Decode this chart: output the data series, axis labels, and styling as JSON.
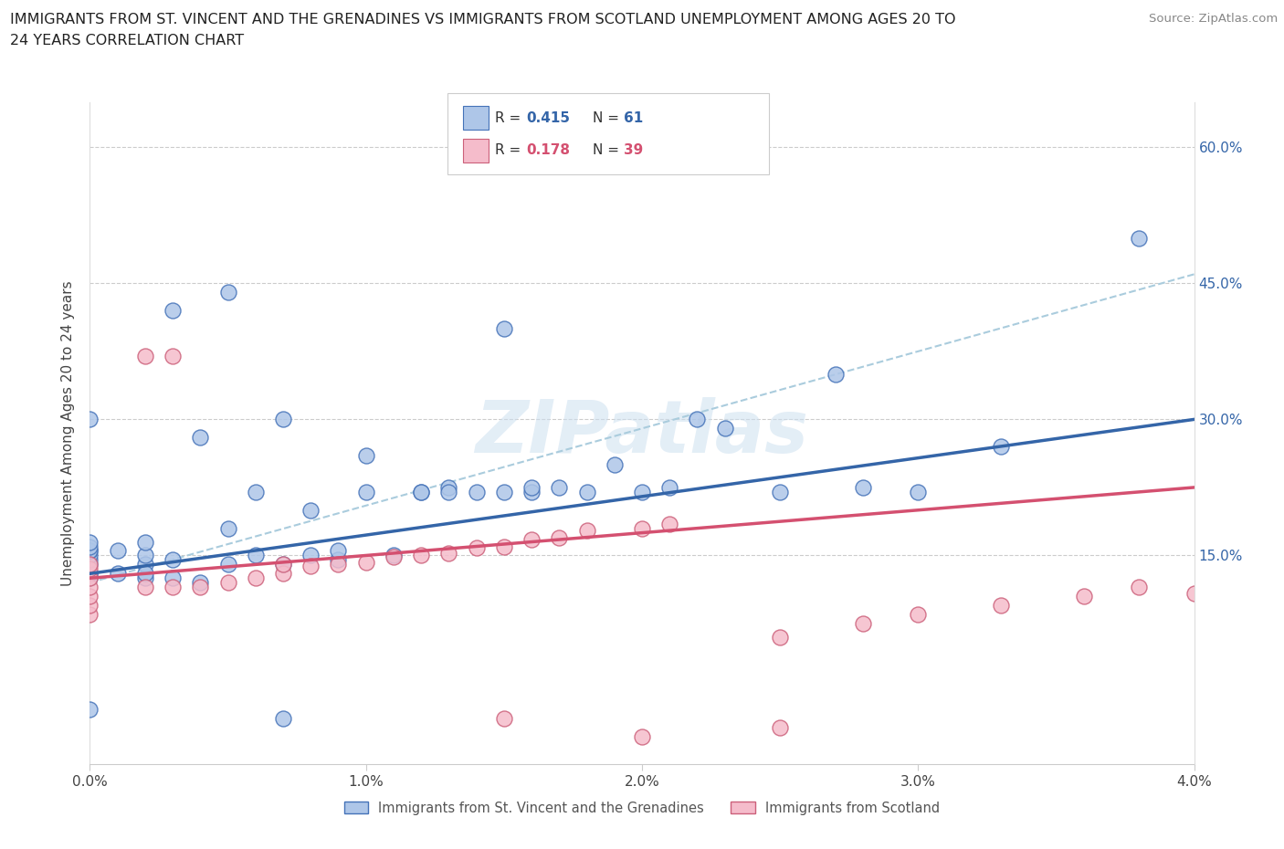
{
  "title_line1": "IMMIGRANTS FROM ST. VINCENT AND THE GRENADINES VS IMMIGRANTS FROM SCOTLAND UNEMPLOYMENT AMONG AGES 20 TO",
  "title_line2": "24 YEARS CORRELATION CHART",
  "source_text": "Source: ZipAtlas.com",
  "ylabel": "Unemployment Among Ages 20 to 24 years",
  "xlim": [
    0.0,
    0.04
  ],
  "ylim": [
    -0.08,
    0.65
  ],
  "xticks": [
    0.0,
    0.01,
    0.02,
    0.03,
    0.04
  ],
  "xtick_labels": [
    "0.0%",
    "1.0%",
    "2.0%",
    "3.0%",
    "4.0%"
  ],
  "ytick_positions": [
    0.15,
    0.3,
    0.45,
    0.6
  ],
  "ytick_labels": [
    "15.0%",
    "30.0%",
    "45.0%",
    "60.0%"
  ],
  "series1_fill": "#aec6e8",
  "series1_edge": "#4472b8",
  "series2_fill": "#f5bccb",
  "series2_edge": "#cc607a",
  "trend1_color": "#3465a8",
  "trend2_color": "#d45070",
  "dash_color": "#aaccdd",
  "legend_label1": "Immigrants from St. Vincent and the Grenadines",
  "legend_label2": "Immigrants from Scotland",
  "R1": 0.415,
  "N1": 61,
  "R2": 0.178,
  "N2": 39,
  "watermark": "ZIPatlas",
  "s1_x": [
    0.0,
    0.0,
    0.0,
    0.0,
    0.0,
    0.0,
    0.0,
    0.0,
    0.0,
    0.0,
    0.0,
    0.0,
    0.001,
    0.001,
    0.002,
    0.002,
    0.002,
    0.002,
    0.002,
    0.003,
    0.003,
    0.003,
    0.004,
    0.004,
    0.005,
    0.005,
    0.005,
    0.006,
    0.006,
    0.007,
    0.007,
    0.007,
    0.008,
    0.008,
    0.009,
    0.009,
    0.01,
    0.01,
    0.011,
    0.012,
    0.012,
    0.013,
    0.013,
    0.014,
    0.015,
    0.015,
    0.016,
    0.016,
    0.017,
    0.018,
    0.019,
    0.02,
    0.021,
    0.022,
    0.023,
    0.025,
    0.027,
    0.028,
    0.03,
    0.033,
    0.038
  ],
  "s1_y": [
    0.125,
    0.13,
    0.13,
    0.14,
    0.145,
    0.15,
    0.155,
    0.155,
    0.16,
    0.165,
    0.3,
    -0.02,
    0.13,
    0.155,
    0.125,
    0.14,
    0.15,
    0.165,
    0.13,
    0.125,
    0.145,
    0.42,
    0.12,
    0.28,
    0.14,
    0.18,
    0.44,
    0.15,
    0.22,
    0.3,
    0.14,
    -0.03,
    0.15,
    0.2,
    0.145,
    0.155,
    0.22,
    0.26,
    0.15,
    0.22,
    0.22,
    0.225,
    0.22,
    0.22,
    0.22,
    0.4,
    0.22,
    0.225,
    0.225,
    0.22,
    0.25,
    0.22,
    0.225,
    0.3,
    0.29,
    0.22,
    0.35,
    0.225,
    0.22,
    0.27,
    0.5
  ],
  "s2_x": [
    0.0,
    0.0,
    0.0,
    0.0,
    0.0,
    0.0,
    0.0,
    0.002,
    0.002,
    0.003,
    0.003,
    0.004,
    0.005,
    0.006,
    0.007,
    0.007,
    0.008,
    0.009,
    0.01,
    0.011,
    0.012,
    0.013,
    0.014,
    0.015,
    0.016,
    0.017,
    0.018,
    0.02,
    0.021,
    0.025,
    0.028,
    0.03,
    0.033,
    0.036,
    0.038,
    0.04,
    0.015,
    0.02,
    0.025
  ],
  "s2_y": [
    0.085,
    0.095,
    0.105,
    0.115,
    0.125,
    0.135,
    0.14,
    0.115,
    0.37,
    0.115,
    0.37,
    0.115,
    0.12,
    0.125,
    0.13,
    0.14,
    0.138,
    0.14,
    0.142,
    0.148,
    0.15,
    0.152,
    0.158,
    0.16,
    0.168,
    0.17,
    0.178,
    0.18,
    0.185,
    0.06,
    0.075,
    0.085,
    0.095,
    0.105,
    0.115,
    0.108,
    -0.03,
    -0.05,
    -0.04
  ]
}
